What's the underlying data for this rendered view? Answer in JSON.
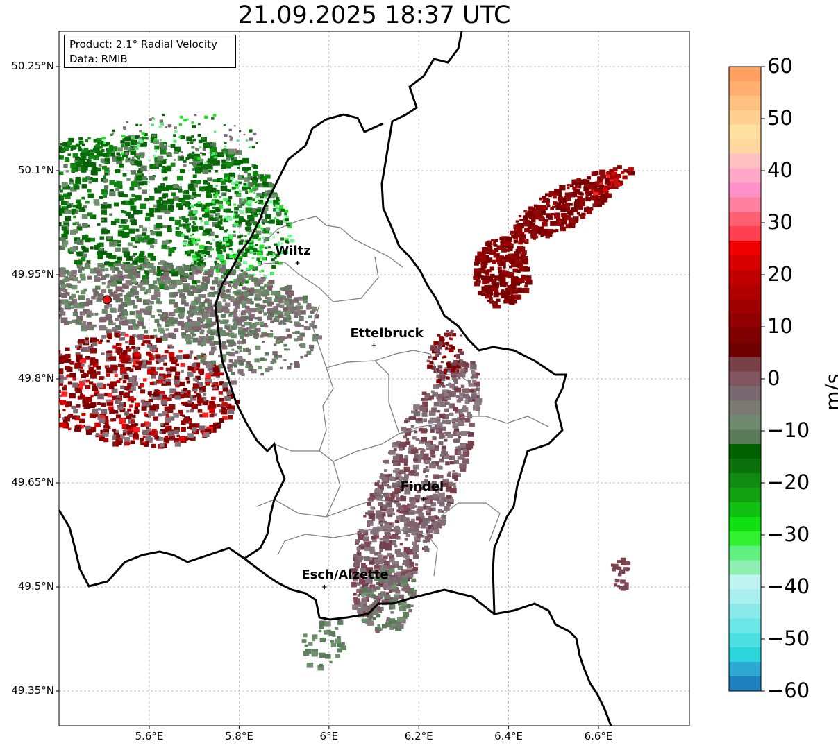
{
  "title": "21.09.2025 18:37 UTC",
  "info": {
    "product": "Product: 2.1° Radial Velocity",
    "data": "Data: RMIB"
  },
  "lat_ticks": [
    "50.25°N",
    "50.1°N",
    "49.95°N",
    "49.8°N",
    "49.65°N",
    "49.5°N",
    "49.35°N"
  ],
  "lon_ticks": [
    "5.6°E",
    "5.8°E",
    "6°E",
    "6.2°E",
    "6.4°E",
    "6.6°E"
  ],
  "cities": [
    {
      "name": "Wiltz",
      "lon": 5.93,
      "lat": 49.967
    },
    {
      "name": "Ettelbruck",
      "lon": 6.1,
      "lat": 49.848
    },
    {
      "name": "Findel",
      "lon": 6.21,
      "lat": 49.627
    },
    {
      "name": "Esch/Alzette",
      "lon": 5.99,
      "lat": 49.5
    }
  ],
  "radar_site": {
    "lon": 5.506,
    "lat": 49.914
  },
  "colorbar": {
    "unit": "m/s",
    "ticks": [
      "60",
      "50",
      "40",
      "30",
      "20",
      "10",
      "0",
      "−10",
      "−20",
      "−30",
      "−40",
      "−50",
      "−60"
    ],
    "range": [
      -60,
      60
    ],
    "colors": [
      "#1f7fc0",
      "#2aa8d0",
      "#2ad6dc",
      "#4adfe0",
      "#6ae6e6",
      "#8aeaea",
      "#a8efef",
      "#c0f2f2",
      "#8ef0b0",
      "#60f080",
      "#30f030",
      "#10e010",
      "#10c010",
      "#10a010",
      "#108a10",
      "#0a700a",
      "#006000",
      "#5a7a5a",
      "#6e8a6e",
      "#7a7a72",
      "#7a6870",
      "#805560",
      "#7a4048",
      "#700000",
      "#800000",
      "#900000",
      "#a00000",
      "#b00000",
      "#c00000",
      "#d80000",
      "#f00000",
      "#ff4050",
      "#ff6070",
      "#ff80a0",
      "#ff90c8",
      "#ffa8c8",
      "#ffc0c0",
      "#ffd8a0",
      "#ffe0a0",
      "#ffd090",
      "#ffc080",
      "#ffb070",
      "#ffa060"
    ]
  }
}
